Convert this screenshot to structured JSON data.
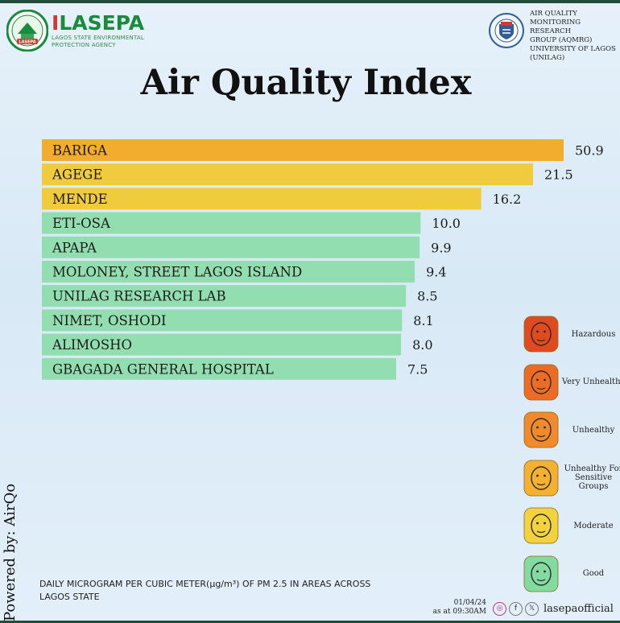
{
  "brand": {
    "name_first": "I",
    "name_rest": "LASEPA",
    "subtitle": "LAGOS STATE ENVIRONMENTAL PROTECTION AGENCY",
    "logo_text": "LASEPA"
  },
  "partner": {
    "text": "AIR QUALITY\nMONITORING RESEARCH\nGROUP (AQMRG)\nUNIVERSITY OF LAGOS\n(UNILAG)"
  },
  "title": "Air Quality Index",
  "chart_data": {
    "type": "bar",
    "orientation": "horizontal",
    "categories": [
      "BARIGA",
      "AGEGE",
      "MENDE",
      "ETI-OSA",
      "APAPA",
      "MOLONEY, STREET LAGOS ISLAND",
      "UNILAG RESEARCH LAB",
      "NIMET, OSHODI",
      "ALIMOSHO",
      "GBAGADA GENERAL HOSPITAL"
    ],
    "values": [
      50.9,
      21.5,
      16.2,
      10.0,
      9.9,
      9.4,
      8.5,
      8.1,
      8.0,
      7.5
    ],
    "value_labels": [
      "50.9",
      "21.5",
      "16.2",
      "10.0",
      "9.9",
      "9.4",
      "8.5",
      "8.1",
      "8.0",
      "7.5"
    ],
    "bar_categories": [
      "Unhealthy For Sensitive Groups",
      "Moderate",
      "Moderate",
      "Good",
      "Good",
      "Good",
      "Good",
      "Good",
      "Good",
      "Good"
    ],
    "colors": {
      "Unhealthy For Sensitive Groups": "#f3ad2e",
      "Moderate": "#f0cb3e",
      "Good": "#92deb0"
    },
    "title": "Air Quality Index",
    "xlabel": "",
    "ylabel": "",
    "grid": false,
    "legend_position": "right"
  },
  "legend": [
    {
      "label": "Hazardous",
      "color": "#e04a1e",
      "icon": "hazardous-face-icon"
    },
    {
      "label": "Very Unhealthy",
      "color": "#ec6c26",
      "icon": "very-unhealthy-face-icon"
    },
    {
      "label": "Unhealthy",
      "color": "#f08a2c",
      "icon": "unhealthy-face-icon"
    },
    {
      "label": "Unhealthy For Sensitive Groups",
      "color": "#f4b030",
      "icon": "sensitive-groups-face-icon"
    },
    {
      "label": "Moderate",
      "color": "#f2d23e",
      "icon": "moderate-face-icon"
    },
    {
      "label": "Good",
      "color": "#84dba2",
      "icon": "good-face-icon"
    }
  ],
  "powered_by": "Powered by: AirQo",
  "caption": "DAILY MICROGRAM PER CUBIC METER(µg/m³) OF PM 2.5 IN AREAS ACROSS LAGOS STATE",
  "date": "01/04/24",
  "time": "as at 09:30AM",
  "social": {
    "icons": [
      "instagram-icon",
      "facebook-icon",
      "x-icon"
    ],
    "glyphs": [
      "◎",
      "f",
      "𝕏"
    ],
    "handle": "lasepaofficial"
  }
}
